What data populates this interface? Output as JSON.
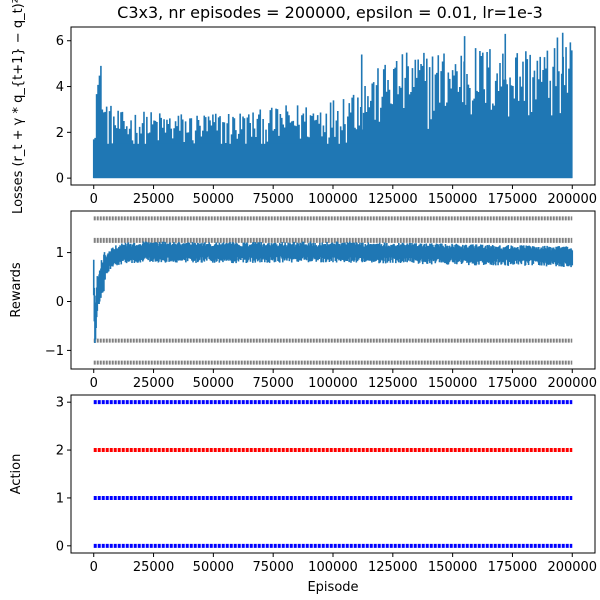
{
  "title": "C3x3, nr episodes = 200000, epsilon = 0.01, lr=1e-3",
  "chart_data": [
    {
      "type": "line",
      "name": "losses",
      "ylabel": "Losses (r_t + γ * q_{t+1} − q_t)²",
      "xlabel": "",
      "xlim": [
        -9500,
        209500
      ],
      "ylim": [
        -0.3,
        6.6
      ],
      "xticks": [
        "0",
        "25000",
        "50000",
        "75000",
        "100000",
        "125000",
        "150000",
        "175000",
        "200000"
      ],
      "yticks": [
        "0",
        "2",
        "4",
        "6"
      ],
      "color": "#1f77b4",
      "envelope": {
        "x": [
          0,
          2000,
          4000,
          8000,
          12000,
          20000,
          30000,
          40000,
          50000,
          60000,
          70000,
          80000,
          90000,
          100000,
          110000,
          120000,
          125000,
          130000,
          140000,
          150000,
          160000,
          170000,
          180000,
          190000,
          195000,
          200000
        ],
        "y_top": [
          4.1,
          4.9,
          3.6,
          3.1,
          2.9,
          2.95,
          2.9,
          2.85,
          2.9,
          2.95,
          3.0,
          3.2,
          3.3,
          3.5,
          4.2,
          4.9,
          5.4,
          5.5,
          5.6,
          5.7,
          5.8,
          5.8,
          5.8,
          5.7,
          6.3,
          6.0
        ]
      },
      "notable_spikes": [
        {
          "x": 3000,
          "y": 4.9
        },
        {
          "x": 112000,
          "y": 5.4
        },
        {
          "x": 155000,
          "y": 6.2
        },
        {
          "x": 172000,
          "y": 6.3
        },
        {
          "x": 196000,
          "y": 6.35
        }
      ]
    },
    {
      "type": "line",
      "name": "rewards",
      "ylabel": "Rewards",
      "xlabel": "",
      "xlim": [
        -9500,
        209500
      ],
      "ylim": [
        -1.38,
        1.85
      ],
      "xticks": [
        "0",
        "25000",
        "50000",
        "75000",
        "100000",
        "125000",
        "150000",
        "175000",
        "200000"
      ],
      "yticks": [
        "-1",
        "0",
        "1"
      ],
      "color": "#1f77b4",
      "reference_levels": {
        "color": "#808080",
        "values": [
          1.7,
          1.25,
          -0.8,
          -1.25
        ]
      },
      "mean_curve": {
        "x": [
          0,
          500,
          1500,
          3000,
          5000,
          8000,
          12000,
          20000,
          50000,
          100000,
          150000,
          200000
        ],
        "y": [
          0.6,
          -0.5,
          0.2,
          0.5,
          0.8,
          0.95,
          1.02,
          1.05,
          1.03,
          1.05,
          1.0,
          0.95
        ]
      },
      "band_halfwidth": 0.18
    },
    {
      "type": "scatter",
      "name": "actions",
      "ylabel": "Action",
      "xlabel": "Episode",
      "xlim": [
        -9500,
        209500
      ],
      "ylim": [
        -0.15,
        3.15
      ],
      "xticks": [
        "0",
        "25000",
        "50000",
        "75000",
        "100000",
        "125000",
        "150000",
        "175000",
        "200000"
      ],
      "yticks": [
        "0",
        "1",
        "2",
        "3"
      ],
      "series": [
        {
          "y": 3,
          "color": "#0000ff",
          "x_range": [
            0,
            200000
          ]
        },
        {
          "y": 2,
          "color": "#ff0000",
          "x_range": [
            0,
            200000
          ]
        },
        {
          "y": 1,
          "color": "#0000ff",
          "x_range": [
            0,
            200000
          ]
        },
        {
          "y": 0,
          "color": "#0000ff",
          "x_range": [
            0,
            200000
          ]
        }
      ]
    }
  ]
}
